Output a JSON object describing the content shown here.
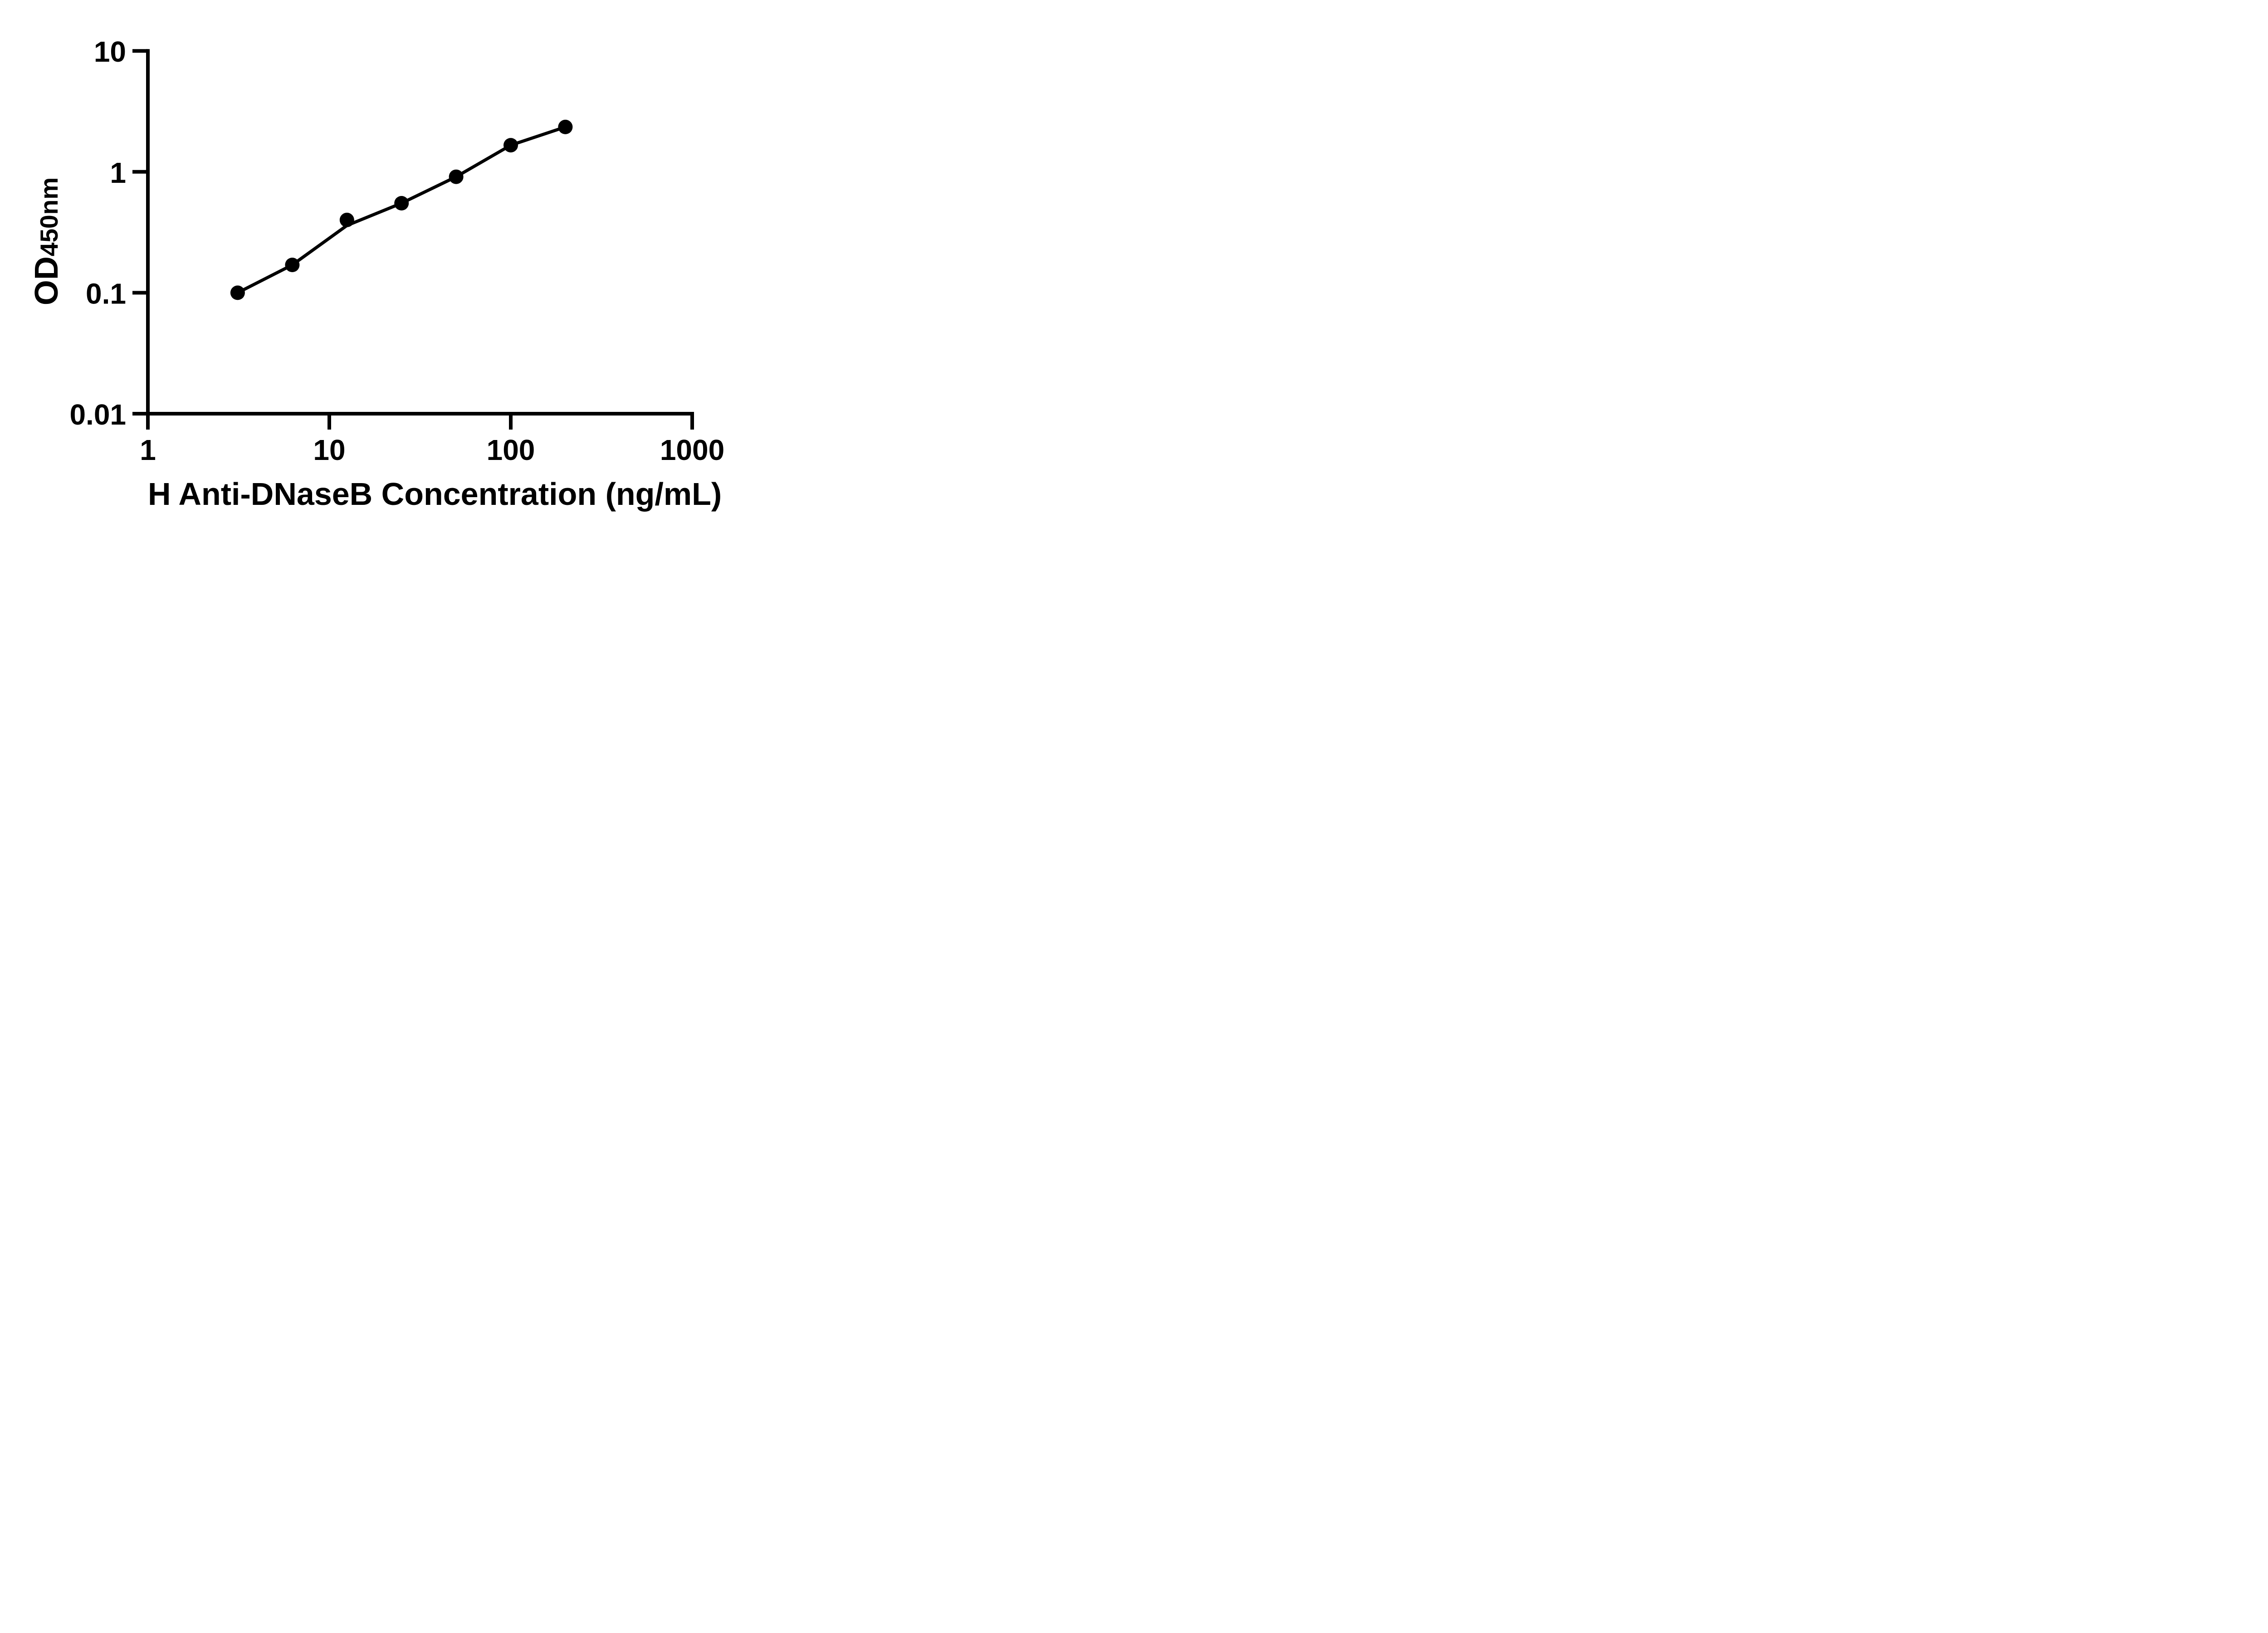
{
  "figure": {
    "background": "#ffffff",
    "ink_color": "#000000"
  },
  "chart_data": {
    "type": "scatter",
    "title": "",
    "xlabel": "H Anti-DNaseB Concentration (ng/mL)",
    "ylabel_main": "OD",
    "ylabel_sub": "450nm",
    "x_scale": "log10",
    "y_scale": "log10",
    "xlim": [
      1,
      1000
    ],
    "ylim": [
      0.01,
      10
    ],
    "grid": "off",
    "legend": "none",
    "x_ticks": [
      {
        "value": 1,
        "label": "1"
      },
      {
        "value": 10,
        "label": "10"
      },
      {
        "value": 100,
        "label": "100"
      },
      {
        "value": 1000,
        "label": "1000"
      }
    ],
    "y_ticks": [
      {
        "value": 10,
        "label": "10"
      },
      {
        "value": 1,
        "label": "1"
      },
      {
        "value": 0.1,
        "label": "0.1"
      },
      {
        "value": 0.01,
        "label": "0.01"
      }
    ],
    "series": [
      {
        "name": "standard-curve-points",
        "marker": "filled-circle",
        "color": "#000000",
        "x": [
          3.125,
          6.25,
          12.5,
          25,
          50,
          100,
          200
        ],
        "y": [
          0.1,
          0.17,
          0.4,
          0.55,
          0.91,
          1.66,
          2.35
        ]
      }
    ],
    "fit_curve": {
      "name": "fitted-line",
      "color": "#000000",
      "x": [
        3.125,
        6.25,
        12.5,
        25,
        50,
        100,
        200
      ],
      "y": [
        0.1,
        0.17,
        0.36,
        0.55,
        0.91,
        1.66,
        2.35
      ]
    }
  }
}
